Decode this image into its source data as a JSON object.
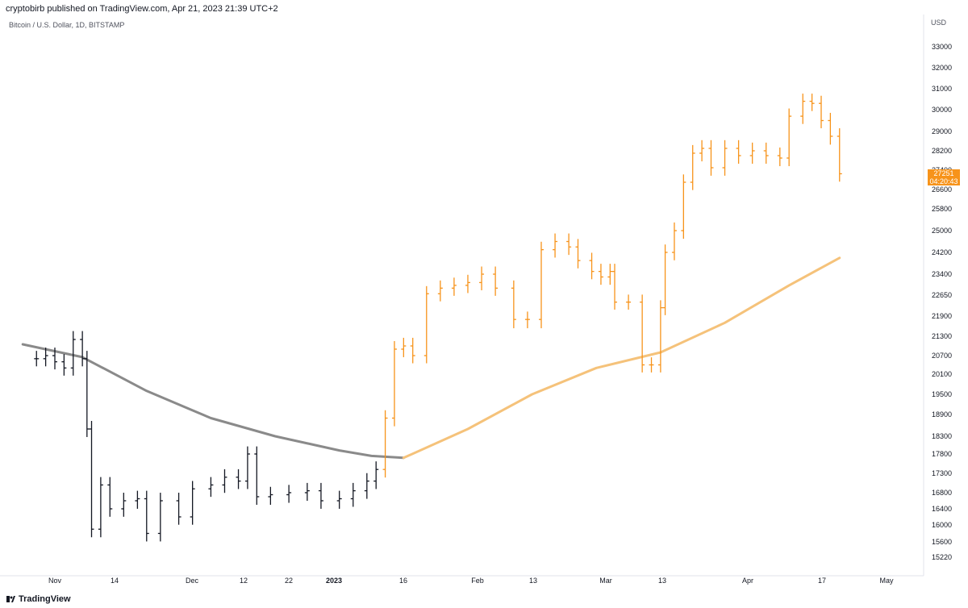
{
  "header": {
    "published_by": "cryptobirb published on TradingView.com, Apr 21, 2023 21:39 UTC+2"
  },
  "chart_header": {
    "symbol": "Bitcoin / U.S. Dollar, 1D, BITSTAMP"
  },
  "footer": {
    "brand": "TradingView"
  },
  "colors": {
    "bull": "#f7931a",
    "bear": "#131722",
    "ma_before": "#8a8a8a",
    "ma_after": "#f5c27a",
    "accent": "#f7931a"
  },
  "chart_data": {
    "type": "line",
    "title": "Bitcoin / U.S. Dollar, 1D, BITSTAMP",
    "ylabel": "USD",
    "y_ticks": [
      33000,
      32000,
      31000,
      30000,
      29000,
      28200,
      27400,
      26600,
      25800,
      25000,
      24200,
      23400,
      22650,
      21900,
      21300,
      20700,
      20100,
      19500,
      18900,
      18300,
      17800,
      17300,
      16800,
      16400,
      16000,
      15600,
      15220
    ],
    "x_ticks": [
      "Nov",
      "14",
      "Dec",
      "12",
      "22",
      "2023",
      "16",
      "Feb",
      "13",
      "Mar",
      "13",
      "Apr",
      "17",
      "May"
    ],
    "last_price": {
      "value": "27251",
      "countdown": "04:20:43"
    },
    "grid": false,
    "series": [
      {
        "type": "ohlc",
        "values": [
          {
            "d": "2022-10-28",
            "c": 20600
          },
          {
            "d": "2022-10-30",
            "c": 20700
          },
          {
            "d": "2022-11-01",
            "c": 20500
          },
          {
            "d": "2022-11-03",
            "c": 20300
          },
          {
            "d": "2022-11-05",
            "c": 21200
          },
          {
            "d": "2022-11-07",
            "c": 20600
          },
          {
            "d": "2022-11-08",
            "c": 18500
          },
          {
            "d": "2022-11-09",
            "c": 15900
          },
          {
            "d": "2022-11-11",
            "c": 17000
          },
          {
            "d": "2022-11-13",
            "c": 16400
          },
          {
            "d": "2022-11-16",
            "c": 16600
          },
          {
            "d": "2022-11-19",
            "c": 16650
          },
          {
            "d": "2022-11-21",
            "c": 15800
          },
          {
            "d": "2022-11-24",
            "c": 16600
          },
          {
            "d": "2022-11-28",
            "c": 16200
          },
          {
            "d": "2022-12-01",
            "c": 16900
          },
          {
            "d": "2022-12-05",
            "c": 17000
          },
          {
            "d": "2022-12-08",
            "c": 17200
          },
          {
            "d": "2022-12-11",
            "c": 17100
          },
          {
            "d": "2022-12-13",
            "c": 17800
          },
          {
            "d": "2022-12-15",
            "c": 16700
          },
          {
            "d": "2022-12-18",
            "c": 16750
          },
          {
            "d": "2022-12-22",
            "c": 16800
          },
          {
            "d": "2022-12-26",
            "c": 16850
          },
          {
            "d": "2022-12-29",
            "c": 16600
          },
          {
            "d": "2023-01-02",
            "c": 16650
          },
          {
            "d": "2023-01-05",
            "c": 16850
          },
          {
            "d": "2023-01-08",
            "c": 17100
          },
          {
            "d": "2023-01-10",
            "c": 17400
          },
          {
            "d": "2023-01-12",
            "c": 18800
          },
          {
            "d": "2023-01-14",
            "c": 20900
          },
          {
            "d": "2023-01-16",
            "c": 21000
          },
          {
            "d": "2023-01-18",
            "c": 20700
          },
          {
            "d": "2023-01-21",
            "c": 22700
          },
          {
            "d": "2023-01-24",
            "c": 22900
          },
          {
            "d": "2023-01-27",
            "c": 23000
          },
          {
            "d": "2023-01-30",
            "c": 23100
          },
          {
            "d": "2023-02-02",
            "c": 23400
          },
          {
            "d": "2023-02-05",
            "c": 22900
          },
          {
            "d": "2023-02-09",
            "c": 21800
          },
          {
            "d": "2023-02-12",
            "c": 21800
          },
          {
            "d": "2023-02-15",
            "c": 24300
          },
          {
            "d": "2023-02-18",
            "c": 24600
          },
          {
            "d": "2023-02-21",
            "c": 24400
          },
          {
            "d": "2023-02-23",
            "c": 23900
          },
          {
            "d": "2023-02-26",
            "c": 23500
          },
          {
            "d": "2023-02-28",
            "c": 23300
          },
          {
            "d": "2023-03-02",
            "c": 23500
          },
          {
            "d": "2023-03-03",
            "c": 22400
          },
          {
            "d": "2023-03-06",
            "c": 22400
          },
          {
            "d": "2023-03-09",
            "c": 20400
          },
          {
            "d": "2023-03-11",
            "c": 20400
          },
          {
            "d": "2023-03-13",
            "c": 22200
          },
          {
            "d": "2023-03-14",
            "c": 24200
          },
          {
            "d": "2023-03-16",
            "c": 25000
          },
          {
            "d": "2023-03-18",
            "c": 26900
          },
          {
            "d": "2023-03-20",
            "c": 28100
          },
          {
            "d": "2023-03-22",
            "c": 28300
          },
          {
            "d": "2023-03-24",
            "c": 27500
          },
          {
            "d": "2023-03-27",
            "c": 28300
          },
          {
            "d": "2023-03-30",
            "c": 28000
          },
          {
            "d": "2023-04-02",
            "c": 28200
          },
          {
            "d": "2023-04-05",
            "c": 28000
          },
          {
            "d": "2023-04-08",
            "c": 27900
          },
          {
            "d": "2023-04-10",
            "c": 29700
          },
          {
            "d": "2023-04-13",
            "c": 30400
          },
          {
            "d": "2023-04-15",
            "c": 30300
          },
          {
            "d": "2023-04-17",
            "c": 29500
          },
          {
            "d": "2023-04-19",
            "c": 28800
          },
          {
            "d": "2023-04-21",
            "c": 27251
          }
        ]
      },
      {
        "type": "moving-average",
        "values": [
          {
            "d": "2022-10-25",
            "v": 21050
          },
          {
            "d": "2022-11-07",
            "v": 20650
          },
          {
            "d": "2022-11-21",
            "v": 19600
          },
          {
            "d": "2022-12-05",
            "v": 18800
          },
          {
            "d": "2022-12-19",
            "v": 18300
          },
          {
            "d": "2023-01-02",
            "v": 17900
          },
          {
            "d": "2023-01-09",
            "v": 17750
          },
          {
            "d": "2023-01-16",
            "v": 17700
          },
          {
            "d": "2023-01-30",
            "v": 18500
          },
          {
            "d": "2023-02-13",
            "v": 19500
          },
          {
            "d": "2023-02-27",
            "v": 20300
          },
          {
            "d": "2023-03-13",
            "v": 20800
          },
          {
            "d": "2023-03-27",
            "v": 21700
          },
          {
            "d": "2023-04-10",
            "v": 23000
          },
          {
            "d": "2023-04-21",
            "v": 24000
          }
        ]
      }
    ]
  }
}
